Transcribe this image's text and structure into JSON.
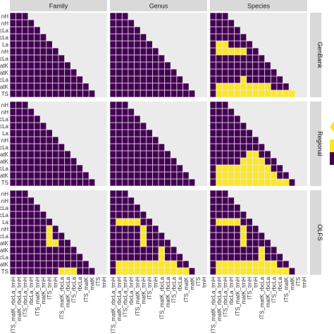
{
  "chart_data": {
    "type": "heatmap",
    "title": "",
    "columns": [
      "Family",
      "Genus",
      "Species"
    ],
    "rows": [
      "GenBank",
      "Regional",
      "OLFS"
    ],
    "row_tick_labels": [
      "nH",
      "nH",
      "cLa",
      "cLa",
      "La",
      "nH",
      "cLa",
      "atK",
      "atK",
      "cLa",
      "atK",
      "TS"
    ],
    "x_tick_labels": [
      "ITS_matK_rbcLa_trnH",
      "matK_rbcLa_trnH",
      "ITS_rbcLa_trnH",
      "rbcLa_trnH",
      "ITS_matK_trnH",
      "matK_trnH",
      "ITS_trnH",
      "trnH",
      "ITS_matK_rbcLa",
      "matK_rbcLa",
      "ITS_rbcLa",
      "rbcLa",
      "ITS_matK",
      "matK",
      "ITS",
      "trnH"
    ],
    "value_encoding": {
      "0": "purple",
      "1": "yellow"
    },
    "colors": {
      "purple": "#440154",
      "yellow": "#fde725",
      "grid_bg": "#ebebeb",
      "strip_bg": "#d9d9d9",
      "legend_arrow": "#fde725"
    },
    "panels": [
      {
        "column": "Family",
        "row": "GenBank",
        "yellow_cells": [
          [
            12,
            14
          ]
        ]
      },
      {
        "column": "Genus",
        "row": "GenBank",
        "yellow_cells": []
      },
      {
        "column": "Species",
        "row": "GenBank",
        "yellow_cells": [
          [
            4,
            1
          ],
          [
            4,
            2
          ],
          [
            5,
            1
          ],
          [
            5,
            2
          ],
          [
            5,
            3
          ],
          [
            5,
            4
          ],
          [
            5,
            5
          ],
          [
            9,
            5
          ],
          [
            10,
            1
          ],
          [
            10,
            2
          ],
          [
            10,
            3
          ],
          [
            10,
            4
          ],
          [
            10,
            5
          ],
          [
            10,
            6
          ],
          [
            10,
            7
          ],
          [
            10,
            8
          ],
          [
            10,
            9
          ],
          [
            11,
            1
          ],
          [
            11,
            2
          ],
          [
            11,
            3
          ],
          [
            11,
            4
          ],
          [
            11,
            5
          ],
          [
            11,
            6
          ],
          [
            11,
            7
          ],
          [
            11,
            8
          ],
          [
            11,
            9
          ],
          [
            11,
            10
          ],
          [
            11,
            11
          ],
          [
            11,
            12
          ],
          [
            11,
            13
          ],
          [
            12,
            14
          ]
        ]
      },
      {
        "column": "Family",
        "row": "Regional",
        "yellow_cells": [
          [
            12,
            3
          ],
          [
            12,
            5
          ],
          [
            12,
            9
          ],
          [
            12,
            10
          ],
          [
            12,
            12
          ],
          [
            12,
            13
          ],
          [
            12,
            15
          ]
        ]
      },
      {
        "column": "Genus",
        "row": "Regional",
        "yellow_cells": [
          [
            12,
            1
          ],
          [
            12,
            2
          ],
          [
            12,
            3
          ],
          [
            12,
            4
          ],
          [
            12,
            5
          ],
          [
            12,
            6
          ],
          [
            12,
            7
          ],
          [
            12,
            8
          ],
          [
            12,
            9
          ],
          [
            12,
            10
          ],
          [
            12,
            11
          ],
          [
            12,
            12
          ],
          [
            12,
            13
          ],
          [
            12,
            14
          ],
          [
            12,
            15
          ]
        ]
      },
      {
        "column": "Species",
        "row": "Regional",
        "yellow_cells": [
          [
            7,
            6
          ],
          [
            7,
            7
          ],
          [
            8,
            5
          ],
          [
            8,
            6
          ],
          [
            8,
            7
          ],
          [
            8,
            8
          ],
          [
            9,
            1
          ],
          [
            9,
            2
          ],
          [
            9,
            3
          ],
          [
            9,
            4
          ],
          [
            9,
            5
          ],
          [
            9,
            6
          ],
          [
            9,
            7
          ],
          [
            9,
            8
          ],
          [
            9,
            9
          ],
          [
            10,
            1
          ],
          [
            10,
            2
          ],
          [
            10,
            3
          ],
          [
            10,
            4
          ],
          [
            10,
            5
          ],
          [
            10,
            6
          ],
          [
            10,
            7
          ],
          [
            10,
            8
          ],
          [
            10,
            9
          ],
          [
            10,
            10
          ],
          [
            11,
            1
          ],
          [
            11,
            2
          ],
          [
            11,
            3
          ],
          [
            11,
            4
          ],
          [
            11,
            5
          ],
          [
            11,
            6
          ],
          [
            11,
            7
          ],
          [
            11,
            8
          ],
          [
            11,
            9
          ],
          [
            11,
            10
          ],
          [
            11,
            11
          ],
          [
            11,
            12
          ],
          [
            12,
            1
          ],
          [
            12,
            2
          ],
          [
            12,
            3
          ],
          [
            12,
            4
          ],
          [
            12,
            5
          ],
          [
            12,
            6
          ],
          [
            12,
            7
          ],
          [
            12,
            8
          ],
          [
            12,
            9
          ],
          [
            12,
            10
          ],
          [
            12,
            11
          ],
          [
            12,
            12
          ],
          [
            12,
            13
          ],
          [
            12,
            14
          ],
          [
            12,
            15
          ]
        ]
      },
      {
        "column": "Family",
        "row": "OLFS",
        "yellow_cells": [
          [
            5,
            6
          ],
          [
            6,
            6
          ],
          [
            7,
            6
          ],
          [
            7,
            7
          ],
          [
            11,
            8
          ],
          [
            11,
            9
          ],
          [
            11,
            10
          ],
          [
            12,
            1
          ],
          [
            12,
            2
          ],
          [
            12,
            3
          ],
          [
            12,
            4
          ],
          [
            12,
            5
          ],
          [
            12,
            6
          ],
          [
            12,
            7
          ],
          [
            12,
            8
          ],
          [
            12,
            9
          ],
          [
            12,
            10
          ],
          [
            12,
            11
          ],
          [
            12,
            12
          ],
          [
            12,
            13
          ],
          [
            12,
            14
          ],
          [
            12,
            15
          ]
        ]
      },
      {
        "column": "Genus",
        "row": "OLFS",
        "yellow_cells": [
          [
            4,
            1
          ],
          [
            4,
            2
          ],
          [
            4,
            3
          ],
          [
            4,
            4
          ],
          [
            5,
            5
          ],
          [
            6,
            5
          ],
          [
            7,
            5
          ],
          [
            8,
            8
          ],
          [
            9,
            8
          ],
          [
            10,
            1
          ],
          [
            10,
            2
          ],
          [
            10,
            3
          ],
          [
            10,
            4
          ],
          [
            10,
            5
          ],
          [
            10,
            6
          ],
          [
            10,
            7
          ],
          [
            10,
            8
          ],
          [
            10,
            9
          ],
          [
            10,
            10
          ],
          [
            11,
            1
          ],
          [
            11,
            2
          ],
          [
            11,
            3
          ],
          [
            11,
            4
          ],
          [
            11,
            5
          ],
          [
            11,
            6
          ],
          [
            11,
            7
          ],
          [
            11,
            8
          ],
          [
            11,
            9
          ],
          [
            11,
            10
          ],
          [
            11,
            11
          ],
          [
            11,
            12
          ],
          [
            12,
            1
          ],
          [
            12,
            2
          ],
          [
            12,
            3
          ],
          [
            12,
            4
          ],
          [
            12,
            5
          ],
          [
            12,
            6
          ],
          [
            12,
            7
          ],
          [
            12,
            8
          ],
          [
            12,
            9
          ],
          [
            12,
            10
          ],
          [
            12,
            11
          ],
          [
            12,
            12
          ],
          [
            12,
            13
          ],
          [
            12,
            14
          ],
          [
            12,
            15
          ]
        ]
      },
      {
        "column": "Species",
        "row": "OLFS",
        "yellow_cells": [
          [
            4,
            1
          ],
          [
            4,
            2
          ],
          [
            4,
            3
          ],
          [
            4,
            4
          ],
          [
            5,
            5
          ],
          [
            6,
            5
          ],
          [
            7,
            5
          ],
          [
            8,
            8
          ],
          [
            9,
            8
          ],
          [
            10,
            1
          ],
          [
            10,
            2
          ],
          [
            10,
            3
          ],
          [
            10,
            4
          ],
          [
            10,
            5
          ],
          [
            10,
            6
          ],
          [
            10,
            7
          ],
          [
            10,
            8
          ],
          [
            10,
            9
          ],
          [
            10,
            10
          ],
          [
            11,
            1
          ],
          [
            11,
            2
          ],
          [
            11,
            3
          ],
          [
            11,
            4
          ],
          [
            11,
            5
          ],
          [
            11,
            6
          ],
          [
            11,
            7
          ],
          [
            11,
            8
          ],
          [
            11,
            9
          ],
          [
            11,
            10
          ],
          [
            11,
            11
          ],
          [
            11,
            12
          ],
          [
            12,
            1
          ],
          [
            12,
            2
          ],
          [
            12,
            3
          ],
          [
            12,
            4
          ],
          [
            12,
            5
          ],
          [
            12,
            6
          ],
          [
            12,
            7
          ],
          [
            12,
            8
          ],
          [
            12,
            9
          ],
          [
            12,
            10
          ],
          [
            12,
            11
          ],
          [
            12,
            12
          ],
          [
            12,
            13
          ],
          [
            12,
            14
          ],
          [
            12,
            15
          ]
        ]
      }
    ]
  }
}
